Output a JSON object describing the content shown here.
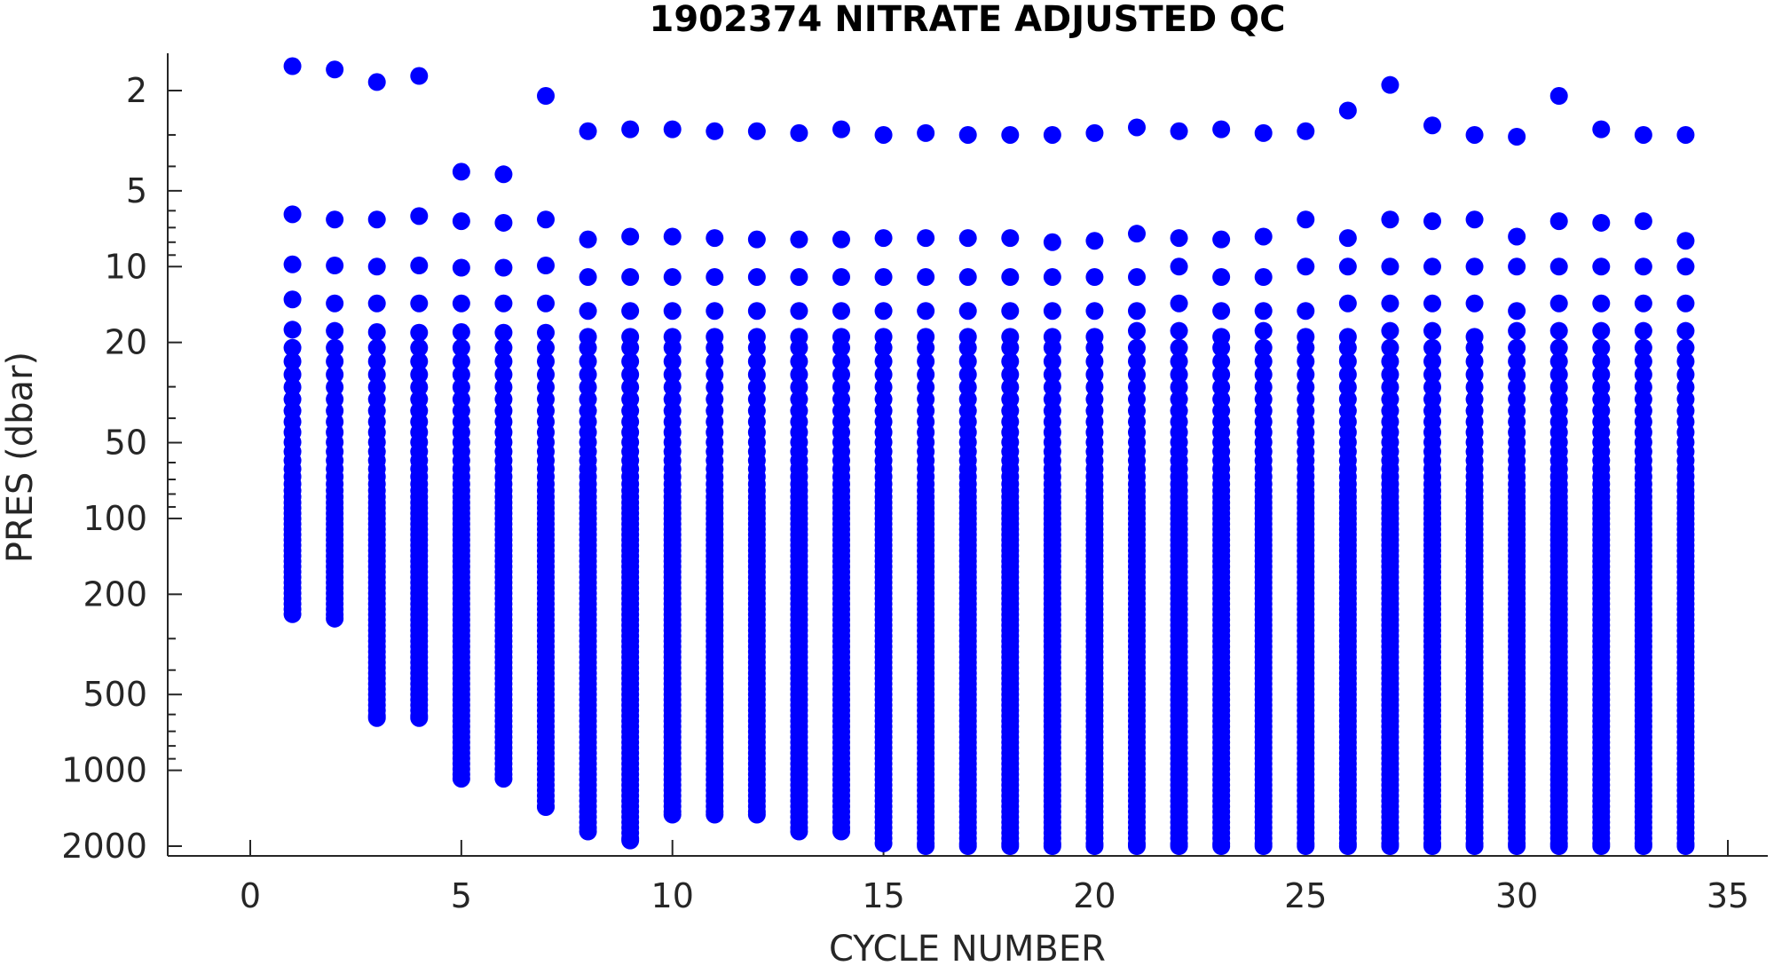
{
  "chart_data": {
    "type": "scatter",
    "title": "1902374  NITRATE ADJUSTED QC",
    "xlabel": "CYCLE NUMBER",
    "ylabel": "PRES (dbar)",
    "x_ticks": [
      0,
      5,
      10,
      15,
      20,
      25,
      30,
      35
    ],
    "y_ticks": [
      2,
      5,
      10,
      20,
      50,
      100,
      200,
      500,
      1000,
      2000
    ],
    "xlim": [
      -2,
      36
    ],
    "ylim": [
      2000,
      1.5
    ],
    "y_scale": "log",
    "y_reversed": true,
    "grid": false,
    "marker_color": "#0000ff",
    "cycles": [
      1,
      2,
      3,
      4,
      5,
      6,
      7,
      8,
      9,
      10,
      11,
      12,
      13,
      14,
      15,
      16,
      17,
      18,
      19,
      20,
      21,
      22,
      23,
      24,
      25,
      26,
      27,
      28,
      29,
      30,
      31,
      32,
      33,
      34
    ],
    "shallow_pressures": [
      [
        1.6,
        6.2,
        9.8,
        13.5,
        17.8
      ],
      [
        1.65,
        6.5,
        9.9,
        14.0,
        18.0
      ],
      [
        1.85,
        6.5,
        10.0,
        14.0,
        18.2
      ],
      [
        1.75,
        6.3,
        9.9,
        14.0,
        18.3
      ],
      [
        4.2,
        6.6,
        10.1,
        14.0,
        18.2
      ],
      [
        4.3,
        6.7,
        10.1,
        14.0,
        18.3
      ],
      [
        2.1,
        6.5,
        9.9,
        14.0,
        18.3
      ],
      [
        2.9,
        7.8,
        11.0,
        15.0,
        19.0
      ],
      [
        2.85,
        7.6,
        11.0,
        15.0,
        19.0
      ],
      [
        2.85,
        7.6,
        11.0,
        15.0,
        19.0
      ],
      [
        2.9,
        7.7,
        11.0,
        15.0,
        19.0
      ],
      [
        2.9,
        7.8,
        11.0,
        15.0,
        19.0
      ],
      [
        2.95,
        7.8,
        11.0,
        15.0,
        19.0
      ],
      [
        2.85,
        7.8,
        11.0,
        15.0,
        19.0
      ],
      [
        3.0,
        7.7,
        11.0,
        15.0,
        19.0
      ],
      [
        2.95,
        7.7,
        11.0,
        15.0,
        19.0
      ],
      [
        3.0,
        7.7,
        11.0,
        15.0,
        19.0
      ],
      [
        3.0,
        7.7,
        11.0,
        15.0,
        19.0
      ],
      [
        3.0,
        8.0,
        11.0,
        15.0,
        19.0
      ],
      [
        2.95,
        7.9,
        11.0,
        15.0,
        19.0
      ],
      [
        2.8,
        7.4,
        11.0,
        15.0,
        18.0
      ],
      [
        2.9,
        7.7,
        10.0,
        14.0,
        18.0
      ],
      [
        2.85,
        7.8,
        11.0,
        15.0,
        19.0
      ],
      [
        2.95,
        7.6,
        11.0,
        15.0,
        18.0
      ],
      [
        2.9,
        6.5,
        10.0,
        15.0,
        19.0
      ],
      [
        2.4,
        7.7,
        10.0,
        14.0,
        19.0
      ],
      [
        1.9,
        6.5,
        10.0,
        14.0,
        18.0
      ],
      [
        2.75,
        6.6,
        10.0,
        14.0,
        18.0
      ],
      [
        3.0,
        6.5,
        10.0,
        14.0,
        19.0
      ],
      [
        3.05,
        7.6,
        10.0,
        15.0,
        18.0
      ],
      [
        2.1,
        6.6,
        10.0,
        14.0,
        18.0
      ],
      [
        2.85,
        6.7,
        10.0,
        14.0,
        18.0
      ],
      [
        3.0,
        6.6,
        10.0,
        14.0,
        18.0
      ],
      [
        3.0,
        7.9,
        10.0,
        14.0,
        18.0
      ]
    ],
    "dense_start_pressure": 21,
    "max_pressures": [
      240,
      250,
      620,
      620,
      1080,
      1080,
      1400,
      1750,
      1900,
      1500,
      1500,
      1500,
      1750,
      1750,
      1950,
      2000,
      2000,
      2000,
      2000,
      2000,
      2000,
      2000,
      2000,
      2000,
      2000,
      2000,
      2000,
      2000,
      2000,
      2000,
      2000,
      2000,
      2000,
      2000
    ]
  }
}
